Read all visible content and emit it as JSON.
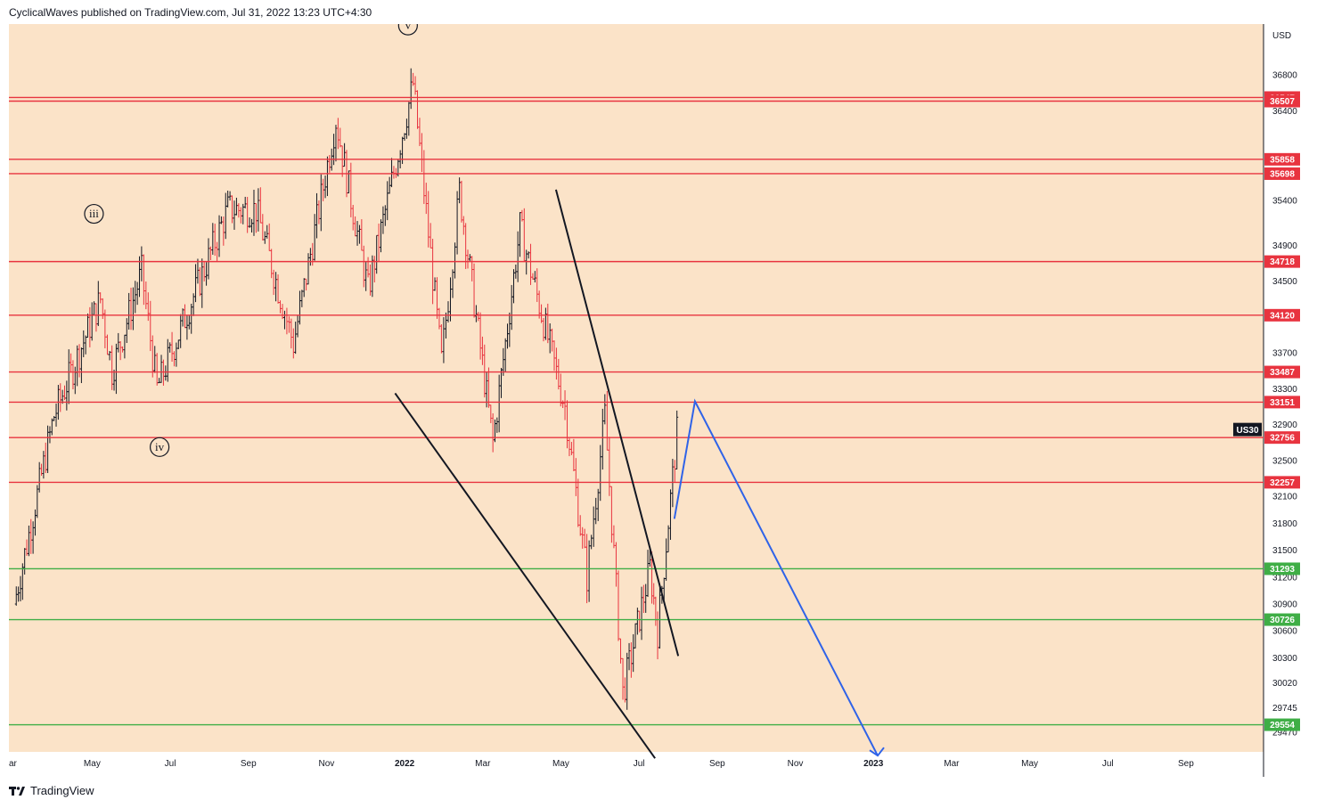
{
  "header": {
    "publisher_line": "CyclicalWaves published on TradingView.com, Jul 31, 2022 13:23 UTC+4:30"
  },
  "footer": {
    "brand": "TradingView"
  },
  "colors": {
    "background": "#fbe3c8",
    "resistance": "#e8343f",
    "support": "#3fae46",
    "projection": "#2f63e8",
    "candles": "#131722",
    "symbol_tag": "#131722"
  },
  "chart_data": {
    "type": "candlestick",
    "symbol": "US30",
    "currency": "USD",
    "x_tick_labels": [
      "ar",
      "May",
      "Jul",
      "Sep",
      "Nov",
      "2022",
      "Mar",
      "May",
      "Jul",
      "Sep",
      "Nov",
      "2023",
      "Mar",
      "May",
      "Jul",
      "Sep"
    ],
    "x_tick_bold": [
      false,
      false,
      false,
      false,
      false,
      true,
      false,
      false,
      false,
      false,
      false,
      true,
      false,
      false,
      false,
      false
    ],
    "y_tick_labels": [
      36800,
      36400,
      35400,
      34900,
      34500,
      33700,
      33300,
      32900,
      32500,
      32100,
      31800,
      31500,
      31200,
      30900,
      30600,
      30300,
      30020,
      29745,
      29470
    ],
    "resistance_levels": [
      36547,
      36507,
      35858,
      35698,
      34718,
      34120,
      33487,
      33151,
      32756,
      32257
    ],
    "support_levels": [
      31293,
      30726,
      29554
    ],
    "current_price": 32900,
    "wave_labels": [
      {
        "label": "iii",
        "date": "2021-05-02",
        "price": 35250
      },
      {
        "label": "iv",
        "date": "2021-06-22",
        "price": 32650
      },
      {
        "label": "v",
        "date": "2022-01-01",
        "price": 37350
      }
    ],
    "trendlines": [
      {
        "from": {
          "date": "2021-12-22",
          "price": 33250
        },
        "to": {
          "date": "2022-07-12",
          "price": 29180
        }
      },
      {
        "from": {
          "date": "2022-04-26",
          "price": 35520
        },
        "to": {
          "date": "2022-07-30",
          "price": 30320
        }
      }
    ],
    "projection_path": [
      {
        "date": "2022-07-27",
        "price": 31850
      },
      {
        "date": "2022-08-12",
        "price": 33160
      },
      {
        "date": "2023-01-01",
        "price": 29210
      }
    ],
    "ohlc_series": [
      {
        "start": "2021-03-01",
        "end": "2021-04-01",
        "from": 30900,
        "to": 33000
      },
      {
        "start": "2021-04-01",
        "end": "2021-05-07",
        "from": 33000,
        "to": 34300
      },
      {
        "start": "2021-05-07",
        "end": "2021-05-16",
        "from": 34300,
        "to": 33500
      },
      {
        "start": "2021-05-16",
        "end": "2021-06-08",
        "from": 33500,
        "to": 34600
      },
      {
        "start": "2021-06-08",
        "end": "2021-06-20",
        "from": 34600,
        "to": 33300
      },
      {
        "start": "2021-06-20",
        "end": "2021-08-14",
        "from": 33300,
        "to": 35300
      },
      {
        "start": "2021-08-14",
        "end": "2021-09-05",
        "from": 35300,
        "to": 35300
      },
      {
        "start": "2021-09-05",
        "end": "2021-10-04",
        "from": 35300,
        "to": 33800
      },
      {
        "start": "2021-10-04",
        "end": "2021-11-06",
        "from": 33800,
        "to": 36300
      },
      {
        "start": "2021-11-06",
        "end": "2021-12-01",
        "from": 36300,
        "to": 34400
      },
      {
        "start": "2021-12-01",
        "end": "2022-01-05",
        "from": 34400,
        "to": 36700
      },
      {
        "start": "2022-01-05",
        "end": "2022-01-27",
        "from": 36700,
        "to": 33600
      },
      {
        "start": "2022-01-27",
        "end": "2022-02-10",
        "from": 33600,
        "to": 35500
      },
      {
        "start": "2022-02-10",
        "end": "2022-03-08",
        "from": 35500,
        "to": 32700
      },
      {
        "start": "2022-03-08",
        "end": "2022-03-29",
        "from": 32700,
        "to": 35100
      },
      {
        "start": "2022-03-29",
        "end": "2022-05-03",
        "from": 35100,
        "to": 33100
      },
      {
        "start": "2022-05-03",
        "end": "2022-05-20",
        "from": 33100,
        "to": 31200
      },
      {
        "start": "2022-05-20",
        "end": "2022-06-03",
        "from": 31200,
        "to": 33000
      },
      {
        "start": "2022-06-03",
        "end": "2022-06-17",
        "from": 33000,
        "to": 29900
      },
      {
        "start": "2022-06-17",
        "end": "2022-07-08",
        "from": 29900,
        "to": 31300
      },
      {
        "start": "2022-07-08",
        "end": "2022-07-14",
        "from": 31300,
        "to": 30600
      },
      {
        "start": "2022-07-14",
        "end": "2022-07-29",
        "from": 30600,
        "to": 32800
      }
    ]
  }
}
